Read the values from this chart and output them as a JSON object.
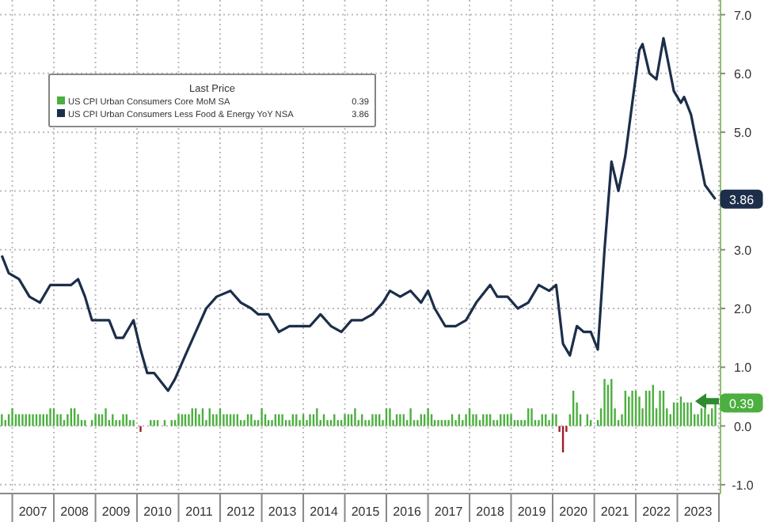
{
  "chart_data": {
    "type": "bar",
    "legend": "left",
    "legend_title": "Last Price",
    "grid": true,
    "marker": "none",
    "xlim": [
      "2006-09-15",
      "2024-01-15"
    ],
    "xticks": [
      {
        "value": "2007-01",
        "label": null
      },
      {
        "value": "2007-07",
        "label": "2007"
      },
      {
        "value": "2008-01",
        "label": null
      },
      {
        "value": "2008-07",
        "label": "2008"
      },
      {
        "value": "2009-01",
        "label": null
      },
      {
        "value": "2009-07",
        "label": "2009"
      },
      {
        "value": "2010-01",
        "label": null
      },
      {
        "value": "2010-07",
        "label": "2010"
      },
      {
        "value": "2011-01",
        "label": null
      },
      {
        "value": "2011-07",
        "label": "2011"
      },
      {
        "value": "2012-01",
        "label": null
      },
      {
        "value": "2012-07",
        "label": "2012"
      },
      {
        "value": "2013-01",
        "label": null
      },
      {
        "value": "2013-07",
        "label": "2013"
      },
      {
        "value": "2014-01",
        "label": null
      },
      {
        "value": "2014-07",
        "label": "2014"
      },
      {
        "value": "2015-01",
        "label": null
      },
      {
        "value": "2015-07",
        "label": "2015"
      },
      {
        "value": "2016-01",
        "label": null
      },
      {
        "value": "2016-07",
        "label": "2016"
      },
      {
        "value": "2017-01",
        "label": null
      },
      {
        "value": "2017-07",
        "label": "2017"
      },
      {
        "value": "2018-01",
        "label": null
      },
      {
        "value": "2018-07",
        "label": "2018"
      },
      {
        "value": "2019-01",
        "label": null
      },
      {
        "value": "2019-07",
        "label": "2019"
      },
      {
        "value": "2020-01",
        "label": null
      },
      {
        "value": "2020-07",
        "label": "2020"
      },
      {
        "value": "2021-01",
        "label": null
      },
      {
        "value": "2021-07",
        "label": "2021"
      },
      {
        "value": "2022-01",
        "label": null
      },
      {
        "value": "2022-07",
        "label": "2022"
      },
      {
        "value": "2023-01",
        "label": null
      },
      {
        "value": "2023-07",
        "label": "2023"
      },
      {
        "value": "2024-01",
        "label": null
      }
    ],
    "ylim": [
      -1.15,
      7.25
    ],
    "yticks": [
      {
        "value": -1,
        "label": "-1.0"
      },
      {
        "value": 0,
        "label": "0.0"
      },
      {
        "value": 1,
        "label": "1.0"
      },
      {
        "value": 2,
        "label": "2.0"
      },
      {
        "value": 3,
        "label": "3.0"
      },
      {
        "value": 4,
        "label": null
      },
      {
        "value": 5,
        "label": "5.0"
      },
      {
        "value": 6,
        "label": "6.0"
      },
      {
        "value": 7,
        "label": "7.0"
      }
    ],
    "annotations": [
      {
        "text": "0.39",
        "x": "2023-12",
        "y": 0.39
      },
      {
        "text": "3.86",
        "x": "2023-12",
        "y": 3.86
      }
    ],
    "series": [
      {
        "name": "US CPI Urban Consumers Core MoM SA",
        "color": "#4caf3f",
        "x": [
          "2006-10",
          "2006-11",
          "2006-12",
          "2007-01",
          "2007-02",
          "2007-03",
          "2007-04",
          "2007-05",
          "2007-06",
          "2007-07",
          "2007-08",
          "2007-09",
          "2007-10",
          "2007-11",
          "2007-12",
          "2008-01",
          "2008-02",
          "2008-03",
          "2008-04",
          "2008-05",
          "2008-06",
          "2008-07",
          "2008-08",
          "2008-09",
          "2008-10",
          "2008-11",
          "2008-12",
          "2009-01",
          "2009-02",
          "2009-03",
          "2009-04",
          "2009-05",
          "2009-06",
          "2009-07",
          "2009-08",
          "2009-09",
          "2009-10",
          "2009-11",
          "2009-12",
          "2010-01",
          "2010-02",
          "2010-03",
          "2010-04",
          "2010-05",
          "2010-06",
          "2010-07",
          "2010-08",
          "2010-09",
          "2010-10",
          "2010-11",
          "2010-12",
          "2011-01",
          "2011-02",
          "2011-03",
          "2011-04",
          "2011-05",
          "2011-06",
          "2011-07",
          "2011-08",
          "2011-09",
          "2011-10",
          "2011-11",
          "2011-12",
          "2012-01",
          "2012-02",
          "2012-03",
          "2012-04",
          "2012-05",
          "2012-06",
          "2012-07",
          "2012-08",
          "2012-09",
          "2012-10",
          "2012-11",
          "2012-12",
          "2013-01",
          "2013-02",
          "2013-03",
          "2013-04",
          "2013-05",
          "2013-06",
          "2013-07",
          "2013-08",
          "2013-09",
          "2013-10",
          "2013-11",
          "2013-12",
          "2014-01",
          "2014-02",
          "2014-03",
          "2014-04",
          "2014-05",
          "2014-06",
          "2014-07",
          "2014-08",
          "2014-09",
          "2014-10",
          "2014-11",
          "2014-12",
          "2015-01",
          "2015-02",
          "2015-03",
          "2015-04",
          "2015-05",
          "2015-06",
          "2015-07",
          "2015-08",
          "2015-09",
          "2015-10",
          "2015-11",
          "2015-12",
          "2016-01",
          "2016-02",
          "2016-03",
          "2016-04",
          "2016-05",
          "2016-06",
          "2016-07",
          "2016-08",
          "2016-09",
          "2016-10",
          "2016-11",
          "2016-12",
          "2017-01",
          "2017-02",
          "2017-03",
          "2017-04",
          "2017-05",
          "2017-06",
          "2017-07",
          "2017-08",
          "2017-09",
          "2017-10",
          "2017-11",
          "2017-12",
          "2018-01",
          "2018-02",
          "2018-03",
          "2018-04",
          "2018-05",
          "2018-06",
          "2018-07",
          "2018-08",
          "2018-09",
          "2018-10",
          "2018-11",
          "2018-12",
          "2019-01",
          "2019-02",
          "2019-03",
          "2019-04",
          "2019-05",
          "2019-06",
          "2019-07",
          "2019-08",
          "2019-09",
          "2019-10",
          "2019-11",
          "2019-12",
          "2020-01",
          "2020-02",
          "2020-03",
          "2020-04",
          "2020-05",
          "2020-06",
          "2020-07",
          "2020-08",
          "2020-09",
          "2020-10",
          "2020-11",
          "2020-12",
          "2021-01",
          "2021-02",
          "2021-03",
          "2021-04",
          "2021-05",
          "2021-06",
          "2021-07",
          "2021-08",
          "2021-09",
          "2021-10",
          "2021-11",
          "2021-12",
          "2022-01",
          "2022-02",
          "2022-03",
          "2022-04",
          "2022-05",
          "2022-06",
          "2022-07",
          "2022-08",
          "2022-09",
          "2022-10",
          "2022-11",
          "2022-12",
          "2023-01",
          "2023-02",
          "2023-03",
          "2023-04",
          "2023-05",
          "2023-06",
          "2023-07",
          "2023-08",
          "2023-09",
          "2023-10",
          "2023-11",
          "2023-12"
        ],
        "values": [
          0.2,
          0.1,
          0.2,
          0.3,
          0.2,
          0.2,
          0.2,
          0.2,
          0.2,
          0.2,
          0.2,
          0.2,
          0.2,
          0.2,
          0.3,
          0.3,
          0.2,
          0.2,
          0.1,
          0.2,
          0.3,
          0.3,
          0.2,
          0.1,
          0.1,
          0.0,
          0.1,
          0.2,
          0.2,
          0.2,
          0.3,
          0.1,
          0.2,
          0.1,
          0.1,
          0.2,
          0.2,
          0.1,
          0.1,
          0.0,
          -0.1,
          0.0,
          0.0,
          0.1,
          0.1,
          0.1,
          0.0,
          0.1,
          0.0,
          0.1,
          0.1,
          0.2,
          0.2,
          0.2,
          0.2,
          0.3,
          0.3,
          0.2,
          0.3,
          0.1,
          0.3,
          0.2,
          0.2,
          0.3,
          0.2,
          0.2,
          0.2,
          0.2,
          0.2,
          0.1,
          0.1,
          0.2,
          0.2,
          0.1,
          0.1,
          0.3,
          0.2,
          0.1,
          0.1,
          0.2,
          0.2,
          0.2,
          0.1,
          0.1,
          0.2,
          0.2,
          0.1,
          0.2,
          0.1,
          0.2,
          0.2,
          0.3,
          0.1,
          0.2,
          0.1,
          0.1,
          0.2,
          0.1,
          0.1,
          0.2,
          0.2,
          0.2,
          0.3,
          0.1,
          0.2,
          0.1,
          0.1,
          0.2,
          0.2,
          0.2,
          0.1,
          0.3,
          0.3,
          0.1,
          0.2,
          0.2,
          0.2,
          0.1,
          0.3,
          0.1,
          0.1,
          0.2,
          0.2,
          0.3,
          0.2,
          0.1,
          0.1,
          0.1,
          0.1,
          0.1,
          0.2,
          0.1,
          0.2,
          0.1,
          0.2,
          0.3,
          0.2,
          0.2,
          0.1,
          0.2,
          0.2,
          0.2,
          0.1,
          0.1,
          0.2,
          0.2,
          0.2,
          0.2,
          0.1,
          0.1,
          0.1,
          0.1,
          0.3,
          0.3,
          0.1,
          0.1,
          0.2,
          0.2,
          0.1,
          0.2,
          0.2,
          -0.1,
          -0.45,
          -0.1,
          0.2,
          0.6,
          0.4,
          0.2,
          0.0,
          0.2,
          0.1,
          0.0,
          0.1,
          0.3,
          0.8,
          0.7,
          0.8,
          0.3,
          0.1,
          0.2,
          0.6,
          0.5,
          0.6,
          0.6,
          0.5,
          0.3,
          0.6,
          0.6,
          0.7,
          0.3,
          0.6,
          0.6,
          0.3,
          0.2,
          0.4,
          0.4,
          0.5,
          0.4,
          0.4,
          0.4,
          0.2,
          0.2,
          0.3,
          0.3,
          0.2,
          0.3,
          0.39
        ],
        "colors": [
          "#4caf3f",
          "#4caf3f",
          "#4caf3f",
          "#4caf3f",
          "#4caf3f",
          "#4caf3f",
          "#4caf3f",
          "#4caf3f",
          "#4caf3f",
          "#4caf3f",
          "#4caf3f",
          "#4caf3f",
          "#4caf3f",
          "#4caf3f",
          "#4caf3f",
          "#4caf3f",
          "#4caf3f",
          "#4caf3f",
          "#4caf3f",
          "#4caf3f",
          "#4caf3f",
          "#4caf3f",
          "#4caf3f",
          "#4caf3f",
          "#4caf3f",
          "#4caf3f",
          "#4caf3f",
          "#4caf3f",
          "#4caf3f",
          "#4caf3f",
          "#4caf3f",
          "#4caf3f",
          "#4caf3f",
          "#4caf3f",
          "#4caf3f",
          "#4caf3f",
          "#4caf3f",
          "#4caf3f",
          "#4caf3f",
          "#4caf3f",
          "#a01c2c",
          "#4caf3f",
          "#4caf3f",
          "#4caf3f",
          "#4caf3f",
          "#4caf3f",
          "#4caf3f",
          "#4caf3f",
          "#4caf3f",
          "#4caf3f",
          "#4caf3f",
          "#4caf3f",
          "#4caf3f",
          "#4caf3f",
          "#4caf3f",
          "#4caf3f",
          "#4caf3f",
          "#4caf3f",
          "#4caf3f",
          "#4caf3f",
          "#4caf3f",
          "#4caf3f",
          "#4caf3f",
          "#4caf3f",
          "#4caf3f",
          "#4caf3f",
          "#4caf3f",
          "#4caf3f",
          "#4caf3f",
          "#4caf3f",
          "#4caf3f",
          "#4caf3f",
          "#4caf3f",
          "#4caf3f",
          "#4caf3f",
          "#4caf3f",
          "#4caf3f",
          "#4caf3f",
          "#4caf3f",
          "#4caf3f",
          "#4caf3f",
          "#4caf3f",
          "#4caf3f",
          "#4caf3f",
          "#4caf3f",
          "#4caf3f",
          "#4caf3f",
          "#4caf3f",
          "#4caf3f",
          "#4caf3f",
          "#4caf3f",
          "#4caf3f",
          "#4caf3f",
          "#4caf3f",
          "#4caf3f",
          "#4caf3f",
          "#4caf3f",
          "#4caf3f",
          "#4caf3f",
          "#4caf3f",
          "#4caf3f",
          "#4caf3f",
          "#4caf3f",
          "#4caf3f",
          "#4caf3f",
          "#4caf3f",
          "#4caf3f",
          "#4caf3f",
          "#4caf3f",
          "#4caf3f",
          "#4caf3f",
          "#4caf3f",
          "#4caf3f",
          "#4caf3f",
          "#4caf3f",
          "#4caf3f",
          "#4caf3f",
          "#4caf3f",
          "#4caf3f",
          "#4caf3f",
          "#4caf3f",
          "#4caf3f",
          "#4caf3f",
          "#4caf3f",
          "#4caf3f",
          "#4caf3f",
          "#4caf3f",
          "#4caf3f",
          "#4caf3f",
          "#4caf3f",
          "#4caf3f",
          "#4caf3f",
          "#4caf3f",
          "#4caf3f",
          "#4caf3f",
          "#4caf3f",
          "#4caf3f",
          "#4caf3f",
          "#4caf3f",
          "#4caf3f",
          "#4caf3f",
          "#4caf3f",
          "#4caf3f",
          "#4caf3f",
          "#4caf3f",
          "#4caf3f",
          "#4caf3f",
          "#4caf3f",
          "#4caf3f",
          "#4caf3f",
          "#4caf3f",
          "#4caf3f",
          "#4caf3f",
          "#4caf3f",
          "#4caf3f",
          "#4caf3f",
          "#4caf3f",
          "#4caf3f",
          "#4caf3f",
          "#4caf3f",
          "#4caf3f",
          "#a01c2c",
          "#a01c2c",
          "#a01c2c",
          "#4caf3f",
          "#4caf3f",
          "#4caf3f",
          "#4caf3f",
          "#4caf3f",
          "#4caf3f",
          "#4caf3f",
          "#4caf3f",
          "#4caf3f",
          "#4caf3f",
          "#4caf3f",
          "#4caf3f",
          "#4caf3f",
          "#4caf3f",
          "#4caf3f",
          "#4caf3f",
          "#4caf3f",
          "#4caf3f",
          "#4caf3f",
          "#4caf3f",
          "#4caf3f",
          "#4caf3f",
          "#4caf3f",
          "#4caf3f",
          "#4caf3f",
          "#4caf3f",
          "#4caf3f",
          "#4caf3f",
          "#4caf3f",
          "#4caf3f",
          "#4caf3f",
          "#4caf3f",
          "#4caf3f",
          "#4caf3f",
          "#4caf3f",
          "#4caf3f",
          "#4caf3f",
          "#4caf3f",
          "#4caf3f",
          "#4caf3f",
          "#4caf3f",
          "#4caf3f",
          "#4caf3f"
        ]
      },
      {
        "name": "US CPI Urban Consumers Less Food & Energy YoY NSA",
        "type": "line",
        "color": "#1c2e4a",
        "x": [
          "2006-10",
          "2006-12",
          "2007-03",
          "2007-06",
          "2007-09",
          "2007-12",
          "2008-03",
          "2008-06",
          "2008-08",
          "2008-10",
          "2008-12",
          "2009-03",
          "2009-05",
          "2009-07",
          "2009-09",
          "2009-11",
          "2009-12",
          "2010-02",
          "2010-04",
          "2010-06",
          "2010-10",
          "2010-12",
          "2011-03",
          "2011-06",
          "2011-09",
          "2011-12",
          "2012-04",
          "2012-07",
          "2012-10",
          "2012-12",
          "2013-03",
          "2013-06",
          "2013-09",
          "2013-12",
          "2014-03",
          "2014-06",
          "2014-09",
          "2014-12",
          "2015-03",
          "2015-06",
          "2015-09",
          "2015-12",
          "2016-02",
          "2016-05",
          "2016-08",
          "2016-11",
          "2017-01",
          "2017-03",
          "2017-06",
          "2017-09",
          "2017-12",
          "2018-03",
          "2018-07",
          "2018-09",
          "2018-12",
          "2019-03",
          "2019-06",
          "2019-09",
          "2019-12",
          "2020-02",
          "2020-04",
          "2020-06",
          "2020-08",
          "2020-10",
          "2020-12",
          "2021-02",
          "2021-04",
          "2021-06",
          "2021-08",
          "2021-10",
          "2021-12",
          "2022-02",
          "2022-03",
          "2022-05",
          "2022-07",
          "2022-09",
          "2022-12",
          "2023-02",
          "2023-03",
          "2023-05",
          "2023-07",
          "2023-09",
          "2023-12"
        ],
        "values": [
          2.9,
          2.6,
          2.5,
          2.2,
          2.1,
          2.4,
          2.4,
          2.4,
          2.5,
          2.2,
          1.8,
          1.8,
          1.8,
          1.5,
          1.5,
          1.7,
          1.8,
          1.3,
          0.9,
          0.9,
          0.6,
          0.8,
          1.2,
          1.6,
          2.0,
          2.2,
          2.3,
          2.1,
          2.0,
          1.9,
          1.9,
          1.6,
          1.7,
          1.7,
          1.7,
          1.9,
          1.7,
          1.6,
          1.8,
          1.8,
          1.9,
          2.1,
          2.3,
          2.2,
          2.3,
          2.1,
          2.3,
          2.0,
          1.7,
          1.7,
          1.8,
          2.1,
          2.4,
          2.2,
          2.2,
          2.0,
          2.1,
          2.4,
          2.3,
          2.4,
          1.4,
          1.2,
          1.7,
          1.6,
          1.6,
          1.3,
          3.0,
          4.5,
          4.0,
          4.6,
          5.5,
          6.4,
          6.5,
          6.0,
          5.9,
          6.6,
          5.7,
          5.5,
          5.6,
          5.3,
          4.7,
          4.1,
          3.86
        ]
      }
    ]
  }
}
